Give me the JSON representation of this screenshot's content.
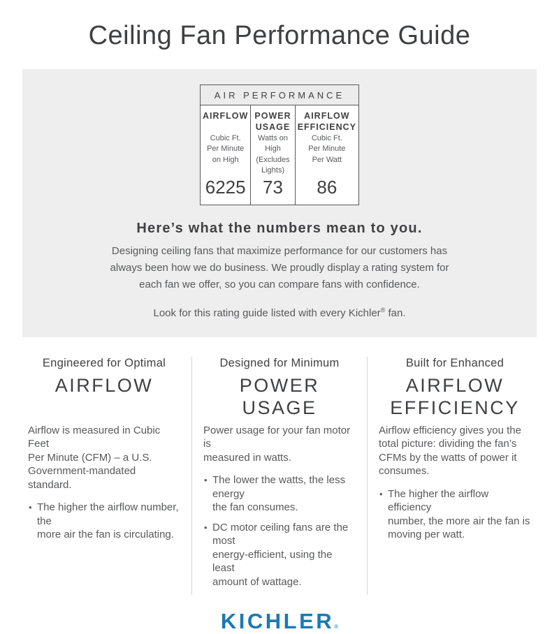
{
  "page": {
    "title": "Ceiling Fan Performance Guide"
  },
  "colors": {
    "brand_blue": "#1b79b2",
    "panel_gray": "#eeeeee",
    "heading_gray": "#414042",
    "body_gray": "#58595b"
  },
  "rating_table": {
    "header": "AIR PERFORMANCE",
    "columns": [
      {
        "label": "AIRFLOW",
        "sublabel": "Cubic Ft.\nPer Minute\non High",
        "value": "6225"
      },
      {
        "label": "POWER\nUSAGE",
        "sublabel": "Watts on High\n(Excludes\nLights)",
        "value": "73"
      },
      {
        "label": "AIRFLOW\nEFFICIENCY",
        "sublabel": "Cubic Ft.\nPer Minute\nPer Watt",
        "value": "86"
      }
    ]
  },
  "intro": {
    "heading": "Here’s what the numbers mean to you.",
    "body": "Designing ceiling fans that maximize performance for our customers has\nalways been how we do business. We proudly display a rating system for\neach fan we offer, so you can compare fans with confidence.",
    "note_before": "Look for this rating guide listed with every Kichler",
    "note_reg": "®",
    "note_after": " fan."
  },
  "features": [
    {
      "kicker": "Engineered for Optimal",
      "title": "AIRFLOW",
      "body": "Airflow is measured in Cubic Feet\nPer Minute (CFM) – a U.S.\nGovernment-mandated standard.",
      "bullets": [
        "The higher the airflow number, the\nmore air the fan is circulating."
      ]
    },
    {
      "kicker": "Designed for Minimum",
      "title": "POWER\nUSAGE",
      "body": "Power usage for your fan motor is\nmeasured in watts.",
      "bullets": [
        "The lower the watts, the less energy\nthe fan consumes.",
        "DC motor ceiling fans are the most\nenergy-efficient, using the least\namount of wattage."
      ]
    },
    {
      "kicker": "Built for Enhanced",
      "title": "AIRFLOW\nEFFICIENCY",
      "body": "Airflow efficiency gives you the\ntotal picture: dividing the fan’s\nCFMs by the watts of power it\nconsumes.",
      "bullets": [
        "The higher the airflow efficiency\nnumber, the more air the fan is\nmoving per watt."
      ]
    }
  ],
  "logo": {
    "text": "KICHLER",
    "reg": "®"
  }
}
